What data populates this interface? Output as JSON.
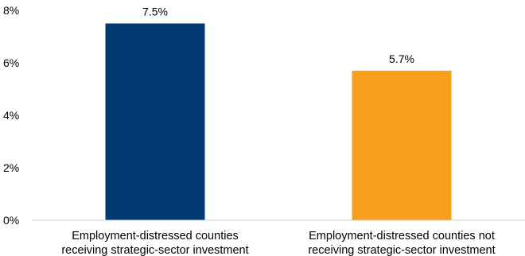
{
  "chart_data": {
    "type": "bar",
    "categories": [
      [
        "Employment-distressed counties",
        "receiving strategic-sector investment"
      ],
      [
        "Employment-distressed counties not",
        "receiving strategic-sector investment"
      ]
    ],
    "values": [
      7.5,
      5.7
    ],
    "data_labels": [
      "7.5%",
      "5.7%"
    ],
    "colors": [
      "#003a70",
      "#f8a01c"
    ],
    "ylim": [
      0,
      8
    ],
    "y_ticks": [
      0,
      2,
      4,
      6,
      8
    ],
    "y_tick_labels": [
      "0%",
      "2%",
      "4%",
      "6%",
      "8%"
    ],
    "title": "",
    "xlabel": "",
    "ylabel": "",
    "grid": false,
    "legend": "none"
  }
}
